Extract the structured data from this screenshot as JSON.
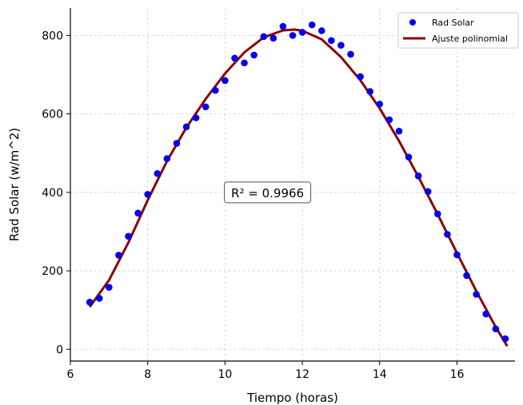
{
  "chart_data": {
    "type": "scatter",
    "xlabel": "Tiempo (horas)",
    "ylabel": "Rad Solar (w/m^2)",
    "xlim": [
      6,
      17.5
    ],
    "ylim": [
      -30,
      870
    ],
    "xticks": [
      6,
      8,
      10,
      12,
      14,
      16
    ],
    "yticks": [
      0,
      200,
      400,
      600,
      800
    ],
    "grid": true,
    "legend_position": "top-right",
    "series": [
      {
        "name": "Rad Solar",
        "kind": "scatter",
        "color": "#0000ee",
        "x": [
          6.5,
          6.75,
          7.0,
          7.25,
          7.5,
          7.75,
          8.0,
          8.25,
          8.5,
          8.75,
          9.0,
          9.25,
          9.5,
          9.75,
          10.0,
          10.25,
          10.5,
          10.75,
          11.0,
          11.25,
          11.5,
          11.75,
          12.0,
          12.25,
          12.5,
          12.75,
          13.0,
          13.25,
          13.5,
          13.75,
          14.0,
          14.25,
          14.5,
          14.75,
          15.0,
          15.25,
          15.5,
          15.75,
          16.0,
          16.25,
          16.5,
          16.75,
          17.0,
          17.25
        ],
        "y": [
          120,
          130,
          158,
          240,
          288,
          347,
          395,
          448,
          486,
          525,
          567,
          590,
          618,
          660,
          685,
          742,
          730,
          750,
          797,
          793,
          823,
          800,
          808,
          827,
          812,
          787,
          775,
          752,
          695,
          657,
          625,
          585,
          556,
          490,
          442,
          402,
          345,
          293,
          241,
          188,
          140,
          90,
          52,
          27
        ]
      },
      {
        "name": "Ajuste polinomial",
        "kind": "line",
        "color": "#8b0000",
        "x": [
          6.5,
          7.0,
          7.5,
          8.0,
          8.5,
          9.0,
          9.5,
          10.0,
          10.5,
          11.0,
          11.5,
          11.8,
          12.0,
          12.5,
          13.0,
          13.5,
          14.0,
          14.5,
          15.0,
          15.5,
          16.0,
          16.5,
          17.0,
          17.3
        ],
        "y": [
          108,
          176,
          272,
          380,
          480,
          565,
          638,
          703,
          757,
          795,
          813,
          815,
          812,
          790,
          745,
          686,
          614,
          531,
          440,
          344,
          245,
          148,
          57,
          8
        ]
      }
    ],
    "annotation": "R² = 0.9966"
  }
}
